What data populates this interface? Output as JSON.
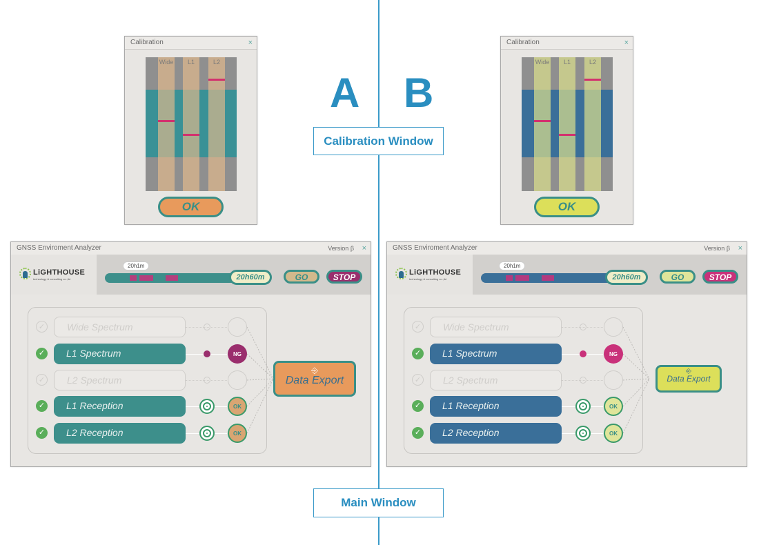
{
  "labels": {
    "a": "A",
    "b": "B",
    "calibration_window": "Calibration Window",
    "main_window": "Main Window"
  },
  "calibration": {
    "title": "Calibration",
    "close": "×",
    "columns": [
      "Wide",
      "L1",
      "L2"
    ],
    "ok": "OK"
  },
  "main": {
    "title": "GNSS Enviroment Analyzer",
    "version": "Version β",
    "close": "×",
    "logo_name": "LiGHTHOUSE",
    "logo_tagline": "technology & consulting co.,ltd",
    "timeline_tooltip": "20h1m",
    "time_display": "20h60m",
    "go": "GO",
    "stop": "STOP",
    "rows": [
      {
        "label": "Wide Spectrum",
        "active": false,
        "status": ""
      },
      {
        "label": "L1 Spectrum",
        "active": true,
        "status": "NG"
      },
      {
        "label": "L2 Spectrum",
        "active": false,
        "status": ""
      },
      {
        "label": "L1 Reception",
        "active": true,
        "status": "OK"
      },
      {
        "label": "L2 Reception",
        "active": true,
        "status": "OK"
      }
    ],
    "export_label": "Data Export",
    "export_icon": "export-icon"
  },
  "themes": {
    "A": {
      "primary": "#3d8f8b",
      "accent": "#e89a5c",
      "band": "#3a9196",
      "column": "#d9b88f",
      "ng": "#9a2e6d",
      "ok_fill": "#d9a572"
    },
    "B": {
      "primary": "#3a6f99",
      "accent": "#dcdf5a",
      "band": "#3a6f99",
      "column": "#d9dc9a",
      "ng": "#c9317a",
      "ok_fill": "#dfe59a"
    }
  }
}
